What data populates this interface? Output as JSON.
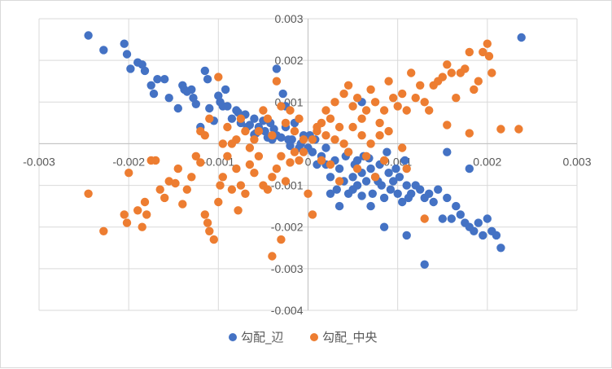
{
  "chart_data": {
    "type": "scatter",
    "title": "",
    "xlabel": "",
    "ylabel": "",
    "xlim": [
      -0.003,
      0.003
    ],
    "ylim": [
      -0.004,
      0.003
    ],
    "grid": true,
    "legend_position": "bottom",
    "x_ticks": [
      "-0.003",
      "-0.002",
      "-0.001",
      "0",
      "0.001",
      "0.002",
      "0.003"
    ],
    "y_ticks": [
      "0.003",
      "0.002",
      "0.001",
      "0",
      "-0.001",
      "-0.002",
      "-0.003",
      "-0.004"
    ],
    "series": [
      {
        "name": "勾配_辺",
        "color": "#4472C4",
        "points": [
          [
            -0.00245,
            0.0026
          ],
          [
            -0.00228,
            0.00225
          ],
          [
            -0.00205,
            0.0024
          ],
          [
            -0.00202,
            0.00215
          ],
          [
            -0.00198,
            0.0018
          ],
          [
            -0.0019,
            0.00195
          ],
          [
            -0.00185,
            0.0019
          ],
          [
            -0.00182,
            0.00175
          ],
          [
            -0.00175,
            0.0014
          ],
          [
            -0.00172,
            0.0012
          ],
          [
            -0.00168,
            0.00155
          ],
          [
            -0.0016,
            0.00155
          ],
          [
            -0.00155,
            0.0011
          ],
          [
            -0.00145,
            0.00085
          ],
          [
            -0.0014,
            0.0014
          ],
          [
            -0.00138,
            0.0013
          ],
          [
            -0.00135,
            0.00125
          ],
          [
            -0.0013,
            0.0013
          ],
          [
            -0.00128,
            0.0011
          ],
          [
            -0.00125,
            0.00095
          ],
          [
            -0.0012,
            0.0004
          ],
          [
            -0.00115,
            0.00175
          ],
          [
            -0.00112,
            0.00155
          ],
          [
            -0.0011,
            0.00085
          ],
          [
            -0.00105,
            0.00055
          ],
          [
            -0.001,
            0.00115
          ],
          [
            -0.00098,
            0.001
          ],
          [
            -0.00095,
            0.0009
          ],
          [
            -0.00092,
            0.0013
          ],
          [
            -0.0009,
            0.0009
          ],
          [
            -0.00085,
            0.0006
          ],
          [
            -0.0008,
            0.0008
          ],
          [
            -0.00078,
            0.00075
          ],
          [
            -0.00075,
            0.0005
          ],
          [
            -0.0007,
            0.0007
          ],
          [
            -0.00068,
            0.0004
          ],
          [
            -0.00065,
            0.00045
          ],
          [
            -0.0006,
            0.0006
          ],
          [
            -0.00058,
            0.00025
          ],
          [
            -0.00055,
            0.0004
          ],
          [
            -0.0005,
            0.00055
          ],
          [
            -0.00048,
            0.0003
          ],
          [
            -0.00045,
            0.00015
          ],
          [
            -0.0004,
            0.0001
          ],
          [
            -0.00038,
            0.00035
          ],
          [
            -0.00035,
            0.0002
          ],
          [
            -0.0003,
            0.00015
          ],
          [
            -0.00025,
            0.0004
          ],
          [
            -0.00022,
            0.0001
          ],
          [
            -0.0002,
            -5e-05
          ],
          [
            -0.00018,
            0.0001
          ],
          [
            -0.00015,
            0.0005
          ],
          [
            -0.0001,
            -0.0001
          ],
          [
            -8e-05,
            0.0
          ],
          [
            -5e-05,
            0.0002
          ],
          [
            -0.00035,
            0.0018
          ],
          [
            -0.00028,
            0.0012
          ],
          [
            -0.00042,
            0.0005
          ],
          [
            -0.00025,
            0.0009
          ],
          [
            -0.0006,
            0.00022
          ],
          [
            0.0,
            -0.0001
          ],
          [
            2e-05,
            0.0002
          ],
          [
            5e-05,
            -0.0002
          ],
          [
            8e-05,
            0.0001
          ],
          [
            0.0001,
            -0.0005
          ],
          [
            0.00015,
            -0.0003
          ],
          [
            0.0002,
            -0.0001
          ],
          [
            0.00025,
            -0.0008
          ],
          [
            0.0003,
            -0.0004
          ],
          [
            0.00032,
            -0.0011
          ],
          [
            0.00035,
            -0.0006
          ],
          [
            0.0004,
            -0.0009
          ],
          [
            0.00042,
            -0.0003
          ],
          [
            0.00045,
            -0.0012
          ],
          [
            0.0005,
            -0.0008
          ],
          [
            0.00052,
            -0.0005
          ],
          [
            0.00055,
            -0.001
          ],
          [
            0.0006,
            -0.0007
          ],
          [
            0.00062,
            -0.0003
          ],
          [
            0.00065,
            -0.0009
          ],
          [
            0.0007,
            -0.0006
          ],
          [
            0.00072,
            -0.0012
          ],
          [
            0.00075,
            -0.0008
          ],
          [
            0.0008,
            -0.0005
          ],
          [
            0.00082,
            -0.001
          ],
          [
            0.00085,
            -0.0013
          ],
          [
            0.0009,
            -0.0007
          ],
          [
            0.00092,
            -0.0011
          ],
          [
            0.00095,
            -0.0009
          ],
          [
            0.001,
            -0.0012
          ],
          [
            0.00102,
            -0.0008
          ],
          [
            0.00105,
            -0.0014
          ],
          [
            0.0011,
            -0.001
          ],
          [
            0.00112,
            -0.0013
          ],
          [
            0.00115,
            -0.0012
          ],
          [
            0.0012,
            -0.001
          ],
          [
            0.00125,
            -0.0011
          ],
          [
            0.0013,
            -0.0013
          ],
          [
            0.00135,
            -0.0012
          ],
          [
            0.0014,
            -0.0014
          ],
          [
            0.00145,
            -0.0011
          ],
          [
            0.0015,
            -0.0018
          ],
          [
            0.00155,
            -0.0013
          ],
          [
            0.0016,
            -0.0018
          ],
          [
            0.00165,
            -0.0015
          ],
          [
            0.0017,
            -0.0017
          ],
          [
            0.00175,
            -0.0019
          ],
          [
            0.0018,
            -0.002
          ],
          [
            0.00185,
            -0.0021
          ],
          [
            0.0019,
            -0.0019
          ],
          [
            0.00195,
            -0.0022
          ],
          [
            0.002,
            -0.0018
          ],
          [
            0.00205,
            -0.0021
          ],
          [
            0.0021,
            -0.0022
          ],
          [
            0.00215,
            -0.0025
          ],
          [
            0.00238,
            0.00255
          ],
          [
            0.0018,
            -0.0006
          ],
          [
            0.00155,
            -0.0002
          ],
          [
            0.0013,
            -0.0029
          ],
          [
            0.0011,
            -0.0022
          ],
          [
            0.00085,
            -0.002
          ],
          [
            0.0007,
            -0.0015
          ],
          [
            0.00055,
            -0.0004
          ],
          [
            0.00045,
            -0.0002
          ],
          [
            0.0006,
            0.001
          ],
          [
            0.00068,
            -0.00035
          ],
          [
            0.00078,
            -0.0009
          ],
          [
            0.00088,
            -0.0002
          ],
          [
            0.00098,
            -0.0006
          ],
          [
            0.00108,
            -0.0004
          ],
          [
            0.0002,
            -0.0005
          ],
          [
            0.00025,
            -0.0012
          ],
          [
            0.00035,
            -0.0015
          ],
          [
            0.0005,
            -0.0011
          ],
          [
            0.0006,
            -0.00125
          ]
        ]
      },
      {
        "name": "勾配_中央",
        "color": "#ED7D31",
        "points": [
          [
            -0.00245,
            -0.0012
          ],
          [
            -0.00228,
            -0.0021
          ],
          [
            -0.00205,
            -0.0017
          ],
          [
            -0.00202,
            -0.0019
          ],
          [
            -0.002,
            -0.0007
          ],
          [
            -0.0019,
            -0.0016
          ],
          [
            -0.00185,
            -0.002
          ],
          [
            -0.00182,
            -0.0014
          ],
          [
            -0.0018,
            -0.0017
          ],
          [
            -0.00175,
            -0.0004
          ],
          [
            -0.0017,
            -0.0004
          ],
          [
            -0.00165,
            -0.0011
          ],
          [
            -0.0016,
            -0.0013
          ],
          [
            -0.00155,
            -0.0009
          ],
          [
            -0.00148,
            -0.00095
          ],
          [
            -0.00145,
            -0.0006
          ],
          [
            -0.0014,
            -0.00145
          ],
          [
            -0.00135,
            -0.0011
          ],
          [
            -0.0013,
            -0.0008
          ],
          [
            -0.00125,
            -0.0003
          ],
          [
            -0.0012,
            -0.00045
          ],
          [
            -0.00115,
            -0.0017
          ],
          [
            -0.00112,
            -0.0019
          ],
          [
            -0.0011,
            -0.0021
          ],
          [
            -0.00105,
            -0.0023
          ],
          [
            -0.001,
            -0.0014
          ],
          [
            -0.00098,
            -0.001
          ],
          [
            -0.00095,
            -0.0008
          ],
          [
            -0.0009,
            -0.0003
          ],
          [
            -0.00085,
            -0.0011
          ],
          [
            -0.0008,
            -0.0006
          ],
          [
            -0.00078,
            -0.0016
          ],
          [
            -0.00075,
            -0.001
          ],
          [
            -0.0007,
            -0.0012
          ],
          [
            -0.00065,
            -0.0005
          ],
          [
            -0.0006,
            -0.0007
          ],
          [
            -0.00055,
            -0.0003
          ],
          [
            -0.0005,
            -0.001
          ],
          [
            -0.00045,
            -0.0011
          ],
          [
            -0.0004,
            -0.0008
          ],
          [
            -0.00035,
            -0.0006
          ],
          [
            -0.0003,
            -0.0003
          ],
          [
            -0.00025,
            -0.0009
          ],
          [
            -0.0002,
            -0.00045
          ],
          [
            -0.00015,
            -0.0002
          ],
          [
            -0.0001,
            -0.0004
          ],
          [
            -5e-05,
            -0.0002
          ],
          [
            0.0,
            -0.0012
          ],
          [
            -0.0004,
            -0.0027
          ],
          [
            -0.0003,
            -0.0023
          ],
          [
            5e-05,
            0.0001
          ],
          [
            0.0001,
            0.0003
          ],
          [
            0.00015,
            0.0005
          ],
          [
            0.0002,
            0.0008
          ],
          [
            0.00025,
            0.0006
          ],
          [
            0.0003,
            0.001
          ],
          [
            0.00035,
            0.0004
          ],
          [
            0.0004,
            0.0012
          ],
          [
            0.00045,
            0.0014
          ],
          [
            0.0005,
            0.0009
          ],
          [
            0.00055,
            0.0011
          ],
          [
            0.0006,
            0.0006
          ],
          [
            0.00065,
            0.0008
          ],
          [
            0.0007,
            0.0013
          ],
          [
            0.00075,
            0.001
          ],
          [
            0.0008,
            0.0005
          ],
          [
            0.00085,
            0.0008
          ],
          [
            0.0009,
            0.0015
          ],
          [
            0.00095,
            0.0011
          ],
          [
            0.001,
            0.0009
          ],
          [
            0.00105,
            0.0012
          ],
          [
            0.0011,
            0.0008
          ],
          [
            0.00115,
            0.0017
          ],
          [
            0.0012,
            0.0011
          ],
          [
            0.00125,
            0.0014
          ],
          [
            0.0013,
            0.001
          ],
          [
            0.00135,
            0.0008
          ],
          [
            0.0014,
            0.0014
          ],
          [
            0.00145,
            0.0015
          ],
          [
            0.0015,
            0.0016
          ],
          [
            0.00155,
            0.0019
          ],
          [
            0.0016,
            0.0017
          ],
          [
            0.00165,
            0.0011
          ],
          [
            0.0017,
            0.0017
          ],
          [
            0.00175,
            0.0018
          ],
          [
            0.0018,
            0.0022
          ],
          [
            0.00185,
            0.0013
          ],
          [
            0.0019,
            0.0015
          ],
          [
            0.00195,
            0.0022
          ],
          [
            0.002,
            0.0024
          ],
          [
            0.00202,
            0.0021
          ],
          [
            0.00205,
            0.0017
          ],
          [
            0.00215,
            0.00035
          ],
          [
            0.00235,
            0.00035
          ],
          [
            0.0018,
            0.00025
          ],
          [
            0.00155,
            0.00045
          ],
          [
            0.0013,
            -0.0018
          ],
          [
            0.0011,
            -0.0006
          ],
          [
            0.00105,
            -0.0001
          ],
          [
            0.0009,
            0.0003
          ],
          [
            0.00085,
            -0.0004
          ],
          [
            0.0008,
            0.0002
          ],
          [
            0.00075,
            -0.0008
          ],
          [
            0.0007,
            0.0
          ],
          [
            0.00065,
            -0.0003
          ],
          [
            0.0006,
            0.0002
          ],
          [
            0.00055,
            -0.0006
          ],
          [
            0.0005,
            0.0004
          ],
          [
            0.00045,
            -0.0002
          ],
          [
            0.0004,
            0.0
          ],
          [
            0.00035,
            -0.0009
          ],
          [
            0.0003,
            0.0001
          ],
          [
            0.00025,
            -0.0005
          ],
          [
            0.0002,
            0.0002
          ],
          [
            0.00015,
            -0.0004
          ],
          [
            0.0001,
            0.0004
          ],
          [
            5e-05,
            -0.0017
          ],
          [
            -5e-05,
            0.0001
          ],
          [
            -0.0001,
            0.0006
          ],
          [
            -0.00015,
            0.0003
          ],
          [
            -0.0002,
            0.0008
          ],
          [
            -0.00025,
            0.0005
          ],
          [
            -0.0003,
            0.0009
          ],
          [
            -0.00035,
            0.0015
          ],
          [
            -0.0004,
            0.0002
          ],
          [
            -0.00045,
            0.0006
          ],
          [
            -0.0005,
            0.0008
          ],
          [
            -0.00055,
            0.0003
          ],
          [
            -0.0006,
            0.0001
          ],
          [
            -0.00065,
            -0.0001
          ],
          [
            -0.0007,
            0.0003
          ],
          [
            -0.00075,
            0.0006
          ],
          [
            -0.0008,
            0.0001
          ],
          [
            -0.00085,
            0.0
          ],
          [
            -0.0009,
            0.0004
          ],
          [
            -0.00095,
            0.0
          ],
          [
            -0.001,
            0.0016
          ],
          [
            -0.0011,
            0.0006
          ],
          [
            -0.00115,
            0.0002
          ],
          [
            -0.0012,
            0.0003
          ]
        ]
      }
    ]
  }
}
